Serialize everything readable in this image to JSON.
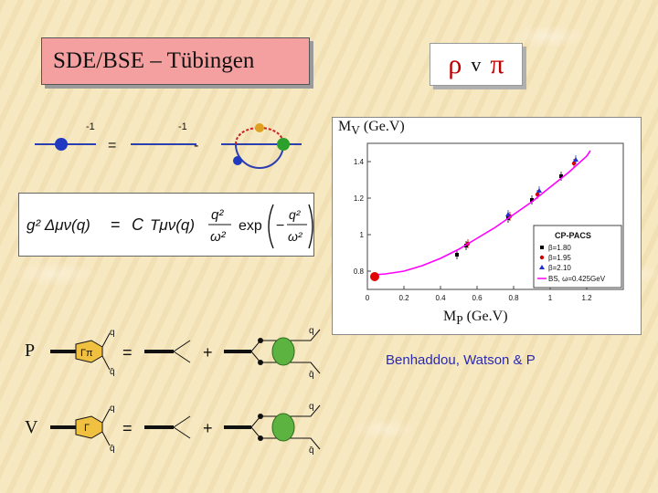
{
  "title": "SDE/BSE – Tübingen",
  "rho_v_pi": {
    "rho": "ρ",
    "v": "v",
    "pi": "π"
  },
  "sde_diagram": {
    "minus_one_a": "-1",
    "minus_one_b": "-1",
    "equals": "=",
    "minus": "-"
  },
  "equation": {
    "lhs": "g² Δμν(q)",
    "equals": "=",
    "rhs_c": "C",
    "rhs_t": "Tμν(q)",
    "frac_num": "q²",
    "frac_den": "ω²",
    "exp": "exp",
    "minus": "−",
    "exp_num": "q²",
    "exp_den": "ω²"
  },
  "plot": {
    "mv_label_main": "M",
    "mv_label_sub": "V",
    "mv_label_unit": "(Ge.V)",
    "mp_label_main": "M",
    "mp_label_sub": "P",
    "mp_label_unit": "(Ge.V)",
    "legend_title": "CP-PACS",
    "legend_items": [
      "β=1.80",
      "β=1.95",
      "β=2.10",
      "BS, ω=0.425GeV"
    ]
  },
  "chart_data": {
    "type": "scatter",
    "xlabel": "MP (Ge.V)",
    "ylabel": "MV (Ge.V)",
    "xlim": [
      0,
      1.4
    ],
    "ylim": [
      0.7,
      1.5
    ],
    "x_ticks": [
      "0",
      "0.2",
      "0.4",
      "0.6",
      "0.8",
      "1",
      "1.2"
    ],
    "y_ticks": [
      "0.8",
      "1",
      "1.2",
      "1.4"
    ],
    "series": [
      {
        "name": "β=1.80",
        "color": "#000000",
        "marker": "square",
        "points": [
          [
            0.49,
            0.89
          ],
          [
            0.54,
            0.94
          ],
          [
            0.77,
            1.09
          ],
          [
            0.9,
            1.19
          ],
          [
            1.06,
            1.32
          ]
        ]
      },
      {
        "name": "β=1.95",
        "color": "#d00000",
        "marker": "circle",
        "points": [
          [
            0.55,
            0.95
          ],
          [
            0.78,
            1.1
          ],
          [
            0.93,
            1.22
          ],
          [
            1.13,
            1.39
          ]
        ]
      },
      {
        "name": "β=2.10",
        "color": "#2030d0",
        "marker": "triangle",
        "points": [
          [
            0.77,
            1.11
          ],
          [
            0.94,
            1.24
          ],
          [
            1.14,
            1.41
          ]
        ]
      },
      {
        "name": "BS, ω=0.425GeV",
        "color": "#ff00ff",
        "marker": "line",
        "points": [
          [
            0.04,
            0.78
          ],
          [
            0.1,
            0.785
          ],
          [
            0.2,
            0.8
          ],
          [
            0.3,
            0.83
          ],
          [
            0.4,
            0.87
          ],
          [
            0.5,
            0.92
          ],
          [
            0.6,
            0.98
          ],
          [
            0.7,
            1.04
          ],
          [
            0.8,
            1.11
          ],
          [
            0.9,
            1.18
          ],
          [
            1.0,
            1.26
          ],
          [
            1.1,
            1.34
          ],
          [
            1.2,
            1.43
          ],
          [
            1.22,
            1.46
          ]
        ]
      }
    ],
    "highlight_point": {
      "x": 0.04,
      "y": 0.77,
      "color": "#e00000"
    }
  },
  "credit": "Benhaddou, Watson & P",
  "bse_rows": [
    {
      "label": "P",
      "vertex": "Γπ"
    },
    {
      "label": "V",
      "vertex": "Γ"
    }
  ],
  "bse_text": {
    "q": "q",
    "qbar": "q̄",
    "equals": "=",
    "plus": "+"
  }
}
